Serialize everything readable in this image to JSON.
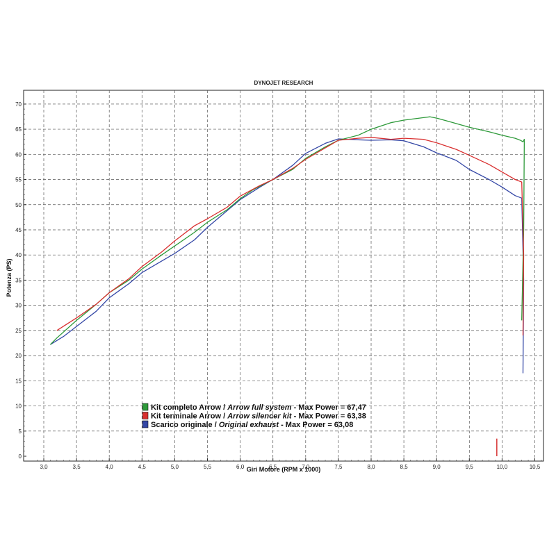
{
  "chart_data": {
    "type": "line",
    "title": "DYNOJET RESEARCH",
    "xlabel": "Giri Motore (RPM x 1000)",
    "ylabel": "Potenza (PS)",
    "xlim": [
      2.8,
      10.7
    ],
    "ylim": [
      0,
      72
    ],
    "xticks": [
      "3,0",
      "3,5",
      "4,0",
      "4,5",
      "5,0",
      "5,5",
      "6,0",
      "6,5",
      "7,0",
      "7,5",
      "8,0",
      "8,5",
      "9,0",
      "9,5",
      "10,0",
      "10,5"
    ],
    "yticks": [
      "0",
      "5",
      "10",
      "15",
      "20",
      "25",
      "30",
      "35",
      "40",
      "45",
      "50",
      "55",
      "60",
      "65",
      "70"
    ],
    "grid": true,
    "legend_position": "bottom-left",
    "series": [
      {
        "color": "#2e9a3a",
        "legend": [
          "Kit completo Arrow / ",
          "Arrow full system",
          " - Max Power = 67,47"
        ],
        "points": [
          [
            3.1,
            22.2
          ],
          [
            3.2,
            23.5
          ],
          [
            3.5,
            27.0
          ],
          [
            3.8,
            30.2
          ],
          [
            4.0,
            32.5
          ],
          [
            4.3,
            35.0
          ],
          [
            4.5,
            37.2
          ],
          [
            4.8,
            40.0
          ],
          [
            5.0,
            41.8
          ],
          [
            5.3,
            44.5
          ],
          [
            5.5,
            46.5
          ],
          [
            5.8,
            49.0
          ],
          [
            6.0,
            51.2
          ],
          [
            6.2,
            53.0
          ],
          [
            6.5,
            55.0
          ],
          [
            6.8,
            57.0
          ],
          [
            7.0,
            59.2
          ],
          [
            7.3,
            61.5
          ],
          [
            7.5,
            62.8
          ],
          [
            7.8,
            63.8
          ],
          [
            8.0,
            65.0
          ],
          [
            8.3,
            66.3
          ],
          [
            8.5,
            66.8
          ],
          [
            8.8,
            67.3
          ],
          [
            8.9,
            67.47
          ],
          [
            9.0,
            67.2
          ],
          [
            9.2,
            66.5
          ],
          [
            9.5,
            65.4
          ],
          [
            9.8,
            64.5
          ],
          [
            10.0,
            63.8
          ],
          [
            10.2,
            63.2
          ],
          [
            10.28,
            62.8
          ],
          [
            10.32,
            62.5
          ],
          [
            10.34,
            63.0
          ],
          [
            10.33,
            45.0
          ],
          [
            10.31,
            33.0
          ],
          [
            10.3,
            27.0
          ]
        ]
      },
      {
        "color": "#d92f2f",
        "legend": [
          "Kit terminale Arrow / ",
          "Arrow silencer kit",
          " - Max Power = 63,38"
        ],
        "points": [
          [
            3.2,
            25.0
          ],
          [
            3.5,
            27.5
          ],
          [
            3.8,
            30.2
          ],
          [
            4.0,
            32.5
          ],
          [
            4.3,
            35.3
          ],
          [
            4.5,
            37.7
          ],
          [
            4.8,
            40.6
          ],
          [
            5.0,
            42.8
          ],
          [
            5.3,
            45.8
          ],
          [
            5.5,
            47.2
          ],
          [
            5.8,
            49.5
          ],
          [
            6.0,
            51.7
          ],
          [
            6.3,
            53.8
          ],
          [
            6.5,
            55.0
          ],
          [
            6.8,
            57.2
          ],
          [
            7.0,
            59.0
          ],
          [
            7.3,
            61.3
          ],
          [
            7.5,
            62.8
          ],
          [
            7.8,
            63.2
          ],
          [
            8.0,
            63.38
          ],
          [
            8.3,
            63.0
          ],
          [
            8.5,
            63.2
          ],
          [
            8.8,
            63.0
          ],
          [
            9.0,
            62.3
          ],
          [
            9.3,
            61.0
          ],
          [
            9.5,
            59.8
          ],
          [
            9.8,
            58.0
          ],
          [
            10.0,
            56.5
          ],
          [
            10.2,
            55.0
          ],
          [
            10.3,
            54.5
          ],
          [
            10.33,
            40.0
          ],
          [
            10.32,
            24.0
          ]
        ]
      },
      {
        "color": "#3447a6",
        "legend": [
          "Scarico originale / ",
          "Original exhaust",
          " - Max Power = 63,08"
        ],
        "points": [
          [
            3.1,
            22.2
          ],
          [
            3.3,
            23.8
          ],
          [
            3.5,
            25.8
          ],
          [
            3.8,
            28.8
          ],
          [
            4.0,
            31.5
          ],
          [
            4.3,
            34.3
          ],
          [
            4.5,
            36.5
          ],
          [
            4.8,
            38.8
          ],
          [
            5.0,
            40.3
          ],
          [
            5.3,
            43.0
          ],
          [
            5.5,
            45.5
          ],
          [
            5.8,
            48.8
          ],
          [
            6.0,
            51.0
          ],
          [
            6.3,
            53.5
          ],
          [
            6.5,
            55.0
          ],
          [
            6.8,
            57.8
          ],
          [
            7.0,
            60.2
          ],
          [
            7.3,
            62.2
          ],
          [
            7.5,
            63.08
          ],
          [
            7.8,
            62.9
          ],
          [
            8.0,
            62.8
          ],
          [
            8.3,
            62.9
          ],
          [
            8.5,
            62.7
          ],
          [
            8.8,
            61.5
          ],
          [
            9.0,
            60.3
          ],
          [
            9.3,
            58.8
          ],
          [
            9.5,
            57.0
          ],
          [
            9.8,
            55.0
          ],
          [
            10.0,
            53.5
          ],
          [
            10.2,
            51.8
          ],
          [
            10.3,
            51.3
          ],
          [
            10.33,
            35.0
          ],
          [
            10.32,
            16.5
          ]
        ]
      }
    ],
    "marker": {
      "x": 9.92,
      "y_top": 3.5,
      "color": "#cc0000"
    }
  }
}
